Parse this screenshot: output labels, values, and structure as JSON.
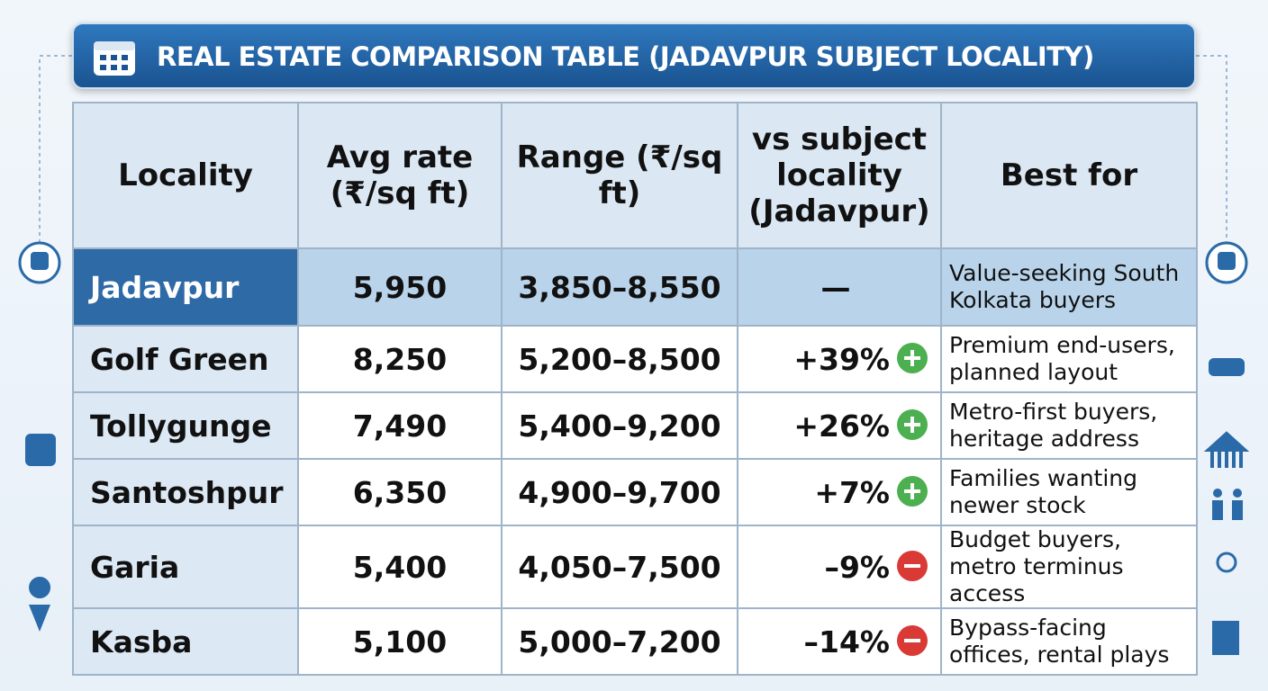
{
  "title": "REAL ESTATE COMPARISON TABLE (JADAVPUR SUBJECT LOCALITY)",
  "table": {
    "header": [
      "Locality",
      "Avg rate (₹/sq ft)",
      "Range (₹/sq ft)",
      "vs subject locality (Jadavpur)",
      "Best for"
    ],
    "rows": [
      [
        "Jadavpur",
        "5,950",
        "3,850–8,550",
        "—",
        "Value-seeking South Kolkata buyers"
      ],
      [
        "Golf Green",
        "8,250",
        "5,200–8,500",
        "+39%",
        "Premium end-users, planned layout"
      ],
      [
        "Tollygunge",
        "7,490",
        "5,400–9,200",
        "+26%",
        "Metro-first buyers, heritage address"
      ],
      [
        "Santoshpur",
        "6,350",
        "4,900–9,700",
        "+7%",
        "Families wanting newer stock"
      ],
      [
        "Garia",
        "5,400",
        "4,050–7,500",
        "–9%",
        "Budget buyers, metro terminus access"
      ],
      [
        "Kasba",
        "5,100",
        "5,000–7,200",
        "–14%",
        "Bypass-facing offices, rental plays"
      ]
    ]
  }
}
